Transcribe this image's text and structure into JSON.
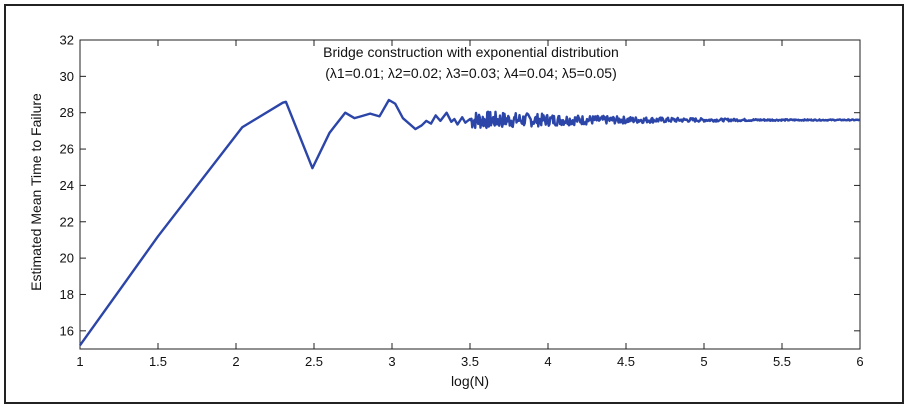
{
  "chart_data": {
    "type": "line",
    "title": "Bridge construction with exponential distribution",
    "subtitle": "(λ1=0.01; λ2=0.02; λ3=0.03; λ4=0.04; λ5=0.05)",
    "xlabel": "log(N)",
    "ylabel": "Estimated Mean Time to Failure",
    "xlim": [
      1,
      6
    ],
    "ylim": [
      15,
      32
    ],
    "x_ticks": [
      "1",
      "1.5",
      "2",
      "2.5",
      "3",
      "3.5",
      "4",
      "4.5",
      "5",
      "5.5",
      "6"
    ],
    "y_ticks": [
      "16",
      "18",
      "20",
      "22",
      "24",
      "26",
      "28",
      "30",
      "32"
    ],
    "grid": false,
    "line_color": "#2b45a8",
    "series": [
      {
        "x": [
          1.0,
          1.5,
          2.04,
          2.3,
          2.32,
          2.49,
          2.6,
          2.7,
          2.76,
          2.8,
          2.86,
          2.92,
          2.98,
          3.02,
          3.07,
          3.15,
          3.19,
          3.22,
          3.25,
          3.28,
          3.31,
          3.35,
          3.38,
          3.4,
          3.42,
          3.45,
          3.47,
          3.5
        ],
        "y": [
          15.2,
          21.2,
          27.2,
          28.55,
          28.6,
          24.95,
          26.9,
          28.0,
          27.7,
          27.8,
          27.95,
          27.8,
          28.7,
          28.5,
          27.7,
          27.1,
          27.3,
          27.55,
          27.4,
          27.85,
          27.55,
          28.0,
          27.5,
          27.65,
          27.35,
          27.75,
          27.45,
          27.65
        ]
      }
    ],
    "noisy_tail": {
      "x_range": [
        3.5,
        6.0
      ],
      "mean": 27.6,
      "amplitude_at_start": 0.5,
      "amplitude_at_end": 0.03
    }
  }
}
